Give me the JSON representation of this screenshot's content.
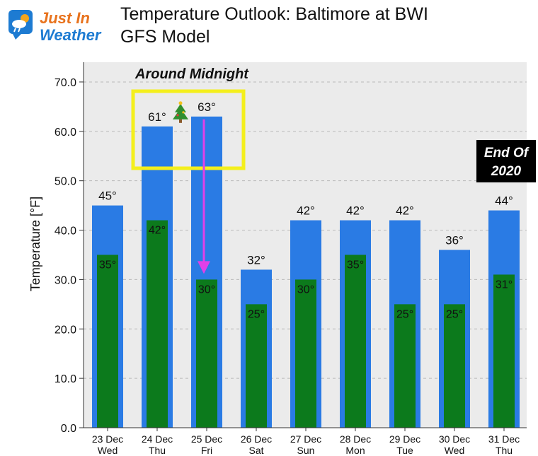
{
  "header": {
    "logo_line1": "Just In",
    "logo_line2": "Weather",
    "title": "Temperature Outlook: Baltimore at BWI",
    "subtitle": "GFS Model"
  },
  "chart_data": {
    "type": "bar",
    "categories": [
      {
        "date": "23 Dec",
        "day": "Wed"
      },
      {
        "date": "24 Dec",
        "day": "Thu"
      },
      {
        "date": "25 Dec",
        "day": "Fri"
      },
      {
        "date": "26 Dec",
        "day": "Sat"
      },
      {
        "date": "27 Dec",
        "day": "Sun"
      },
      {
        "date": "28 Dec",
        "day": "Mon"
      },
      {
        "date": "29 Dec",
        "day": "Tue"
      },
      {
        "date": "30 Dec",
        "day": "Wed"
      },
      {
        "date": "31 Dec",
        "day": "Thu"
      }
    ],
    "series": [
      {
        "values": [
          45,
          61,
          63,
          32,
          42,
          42,
          42,
          36,
          44
        ],
        "labels": [
          "45°",
          "61°",
          "63°",
          "32°",
          "42°",
          "42°",
          "42°",
          "36°",
          "44°"
        ],
        "color": "#2a7be4"
      },
      {
        "values": [
          35,
          42,
          30,
          25,
          30,
          35,
          25,
          25,
          31
        ],
        "labels": [
          "35°",
          "42°",
          "30°",
          "25°",
          "30°",
          "35°",
          "25°",
          "25°",
          "31°"
        ],
        "color": "#0c7a1c"
      }
    ],
    "ylabel": "Temperature [°F]",
    "ylim": [
      0,
      74
    ],
    "yticks": [
      "0.0",
      "10.0",
      "20.0",
      "30.0",
      "40.0",
      "50.0",
      "60.0",
      "70.0"
    ],
    "grid": true,
    "annotations": {
      "highlight_label": "Around Midnight",
      "end_label_1": "End Of",
      "end_label_2": "2020",
      "tree_icon": "christmas-tree-icon",
      "arrow_color": "#e040e8",
      "highlight_color": "#f4ef1c"
    }
  }
}
